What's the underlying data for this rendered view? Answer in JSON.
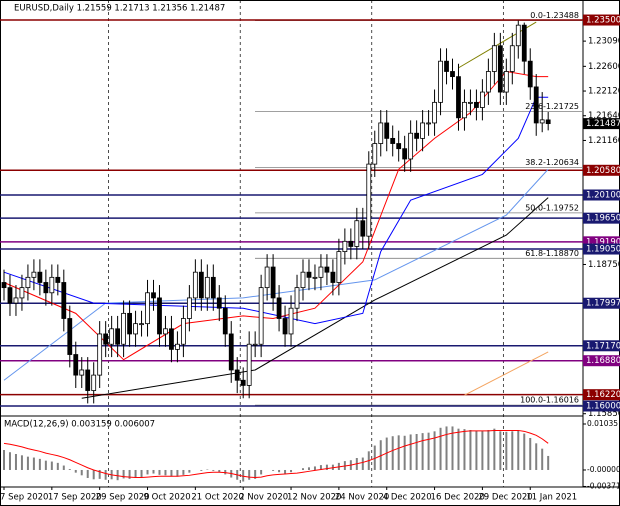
{
  "chart_data": {
    "type": "candlestick",
    "title": "EURUSD,Daily 1.21559 1.21713 1.21356 1.21487",
    "categories": [
      "7 Sep 2020",
      null,
      null,
      null,
      null,
      null,
      null,
      null,
      "17 Sep 2020",
      null,
      null,
      null,
      null,
      null,
      null,
      null,
      "29 Sep 2020",
      null,
      null,
      null,
      null,
      null,
      null,
      null,
      "9 Oct 2020",
      null,
      null,
      null,
      null,
      null,
      null,
      null,
      "21 Oct 2020",
      null,
      null,
      null,
      null,
      null,
      null,
      null,
      "2 Nov 2020",
      null,
      null,
      null,
      null,
      null,
      null,
      null,
      "12 Nov 2020",
      null,
      null,
      null,
      null,
      null,
      null,
      null,
      "24 Nov 2020",
      null,
      null,
      null,
      null,
      null,
      null,
      null,
      "4 Dec 2020",
      null,
      null,
      null,
      null,
      null,
      null,
      null,
      "16 Dec 2020",
      null,
      null,
      null,
      null,
      null,
      null,
      null,
      "29 Dec 2020",
      null,
      null,
      null,
      null,
      null,
      null,
      null,
      "11 Jan 2021",
      null,
      null,
      null
    ],
    "ohlc": [
      [
        1.184,
        1.1865,
        1.1805,
        1.183
      ],
      [
        1.183,
        1.1855,
        1.1775,
        1.18
      ],
      [
        1.18,
        1.1835,
        1.1775,
        1.181
      ],
      [
        1.181,
        1.1855,
        1.1785,
        1.183
      ],
      [
        1.183,
        1.1875,
        1.1805,
        1.185
      ],
      [
        1.185,
        1.1885,
        1.1825,
        1.186
      ],
      [
        1.186,
        1.1885,
        1.1815,
        1.184
      ],
      [
        1.184,
        1.1865,
        1.1795,
        1.182
      ],
      [
        1.182,
        1.1875,
        1.1795,
        1.185
      ],
      [
        1.185,
        1.1875,
        1.1815,
        1.184
      ],
      [
        1.184,
        1.1865,
        1.1745,
        1.177
      ],
      [
        1.177,
        1.1795,
        1.1675,
        1.17
      ],
      [
        1.17,
        1.1725,
        1.1635,
        1.166
      ],
      [
        1.166,
        1.1695,
        1.1635,
        1.167
      ],
      [
        1.167,
        1.1695,
        1.1605,
        1.163
      ],
      [
        1.163,
        1.1685,
        1.1605,
        1.166
      ],
      [
        1.166,
        1.1765,
        1.1635,
        1.174
      ],
      [
        1.174,
        1.1765,
        1.1695,
        1.172
      ],
      [
        1.172,
        1.1775,
        1.1695,
        1.175
      ],
      [
        1.175,
        1.1775,
        1.1695,
        1.172
      ],
      [
        1.172,
        1.1805,
        1.1695,
        1.178
      ],
      [
        1.178,
        1.1805,
        1.1715,
        1.174
      ],
      [
        1.174,
        1.1785,
        1.1715,
        1.176
      ],
      [
        1.176,
        1.1785,
        1.1735,
        1.176
      ],
      [
        1.176,
        1.1845,
        1.1735,
        1.182
      ],
      [
        1.182,
        1.1845,
        1.1785,
        1.181
      ],
      [
        1.181,
        1.1835,
        1.1715,
        1.174
      ],
      [
        1.174,
        1.1775,
        1.1715,
        1.175
      ],
      [
        1.175,
        1.1775,
        1.1685,
        1.171
      ],
      [
        1.171,
        1.1745,
        1.1685,
        1.172
      ],
      [
        1.172,
        1.1795,
        1.1695,
        1.177
      ],
      [
        1.177,
        1.1835,
        1.1745,
        1.181
      ],
      [
        1.181,
        1.1885,
        1.1785,
        1.186
      ],
      [
        1.186,
        1.1885,
        1.1785,
        1.181
      ],
      [
        1.181,
        1.1875,
        1.1785,
        1.185
      ],
      [
        1.185,
        1.1875,
        1.1785,
        1.181
      ],
      [
        1.181,
        1.1835,
        1.1765,
        1.179
      ],
      [
        1.179,
        1.1815,
        1.1715,
        1.174
      ],
      [
        1.174,
        1.1765,
        1.1645,
        1.167
      ],
      [
        1.167,
        1.1695,
        1.1625,
        1.165
      ],
      [
        1.165,
        1.1675,
        1.1615,
        1.164
      ],
      [
        1.164,
        1.1745,
        1.1615,
        1.172
      ],
      [
        1.172,
        1.1745,
        1.1695,
        1.172
      ],
      [
        1.172,
        1.1855,
        1.1695,
        1.183
      ],
      [
        1.183,
        1.1895,
        1.1805,
        1.187
      ],
      [
        1.187,
        1.1895,
        1.1785,
        1.181
      ],
      [
        1.181,
        1.1835,
        1.1745,
        1.177
      ],
      [
        1.177,
        1.1795,
        1.1715,
        1.174
      ],
      [
        1.174,
        1.1815,
        1.1715,
        1.179
      ],
      [
        1.179,
        1.1855,
        1.1765,
        1.183
      ],
      [
        1.183,
        1.1885,
        1.1805,
        1.186
      ],
      [
        1.186,
        1.1885,
        1.1825,
        1.185
      ],
      [
        1.185,
        1.1875,
        1.1825,
        1.185
      ],
      [
        1.185,
        1.1895,
        1.1825,
        1.187
      ],
      [
        1.187,
        1.1895,
        1.1835,
        1.186
      ],
      [
        1.186,
        1.1885,
        1.1815,
        1.184
      ],
      [
        1.184,
        1.1925,
        1.1815,
        1.19
      ],
      [
        1.19,
        1.1945,
        1.1875,
        1.192
      ],
      [
        1.192,
        1.1945,
        1.1885,
        1.191
      ],
      [
        1.191,
        1.1985,
        1.1885,
        1.196
      ],
      [
        1.196,
        1.1985,
        1.1905,
        1.193
      ],
      [
        1.193,
        1.2095,
        1.1905,
        1.207
      ],
      [
        1.207,
        1.2135,
        1.2045,
        1.211
      ],
      [
        1.211,
        1.2175,
        1.2085,
        1.215
      ],
      [
        1.215,
        1.2175,
        1.2095,
        1.212
      ],
      [
        1.212,
        1.2145,
        1.2085,
        1.211
      ],
      [
        1.211,
        1.2135,
        1.2075,
        1.21
      ],
      [
        1.21,
        1.2125,
        1.2055,
        1.208
      ],
      [
        1.208,
        1.2155,
        1.2055,
        1.213
      ],
      [
        1.213,
        1.2155,
        1.2095,
        1.212
      ],
      [
        1.212,
        1.2175,
        1.2095,
        1.215
      ],
      [
        1.215,
        1.2175,
        1.2125,
        1.215
      ],
      [
        1.215,
        1.2215,
        1.2125,
        1.219
      ],
      [
        1.219,
        1.2295,
        1.2165,
        1.227
      ],
      [
        1.227,
        1.2295,
        1.2225,
        1.225
      ],
      [
        1.225,
        1.2275,
        1.2215,
        1.224
      ],
      [
        1.224,
        1.2265,
        1.2135,
        1.216
      ],
      [
        1.216,
        1.2215,
        1.2135,
        1.219
      ],
      [
        1.219,
        1.2215,
        1.2165,
        1.219
      ],
      [
        1.219,
        1.2215,
        1.2155,
        1.218
      ],
      [
        1.218,
        1.2235,
        1.2155,
        1.221
      ],
      [
        1.221,
        1.2275,
        1.2185,
        1.225
      ],
      [
        1.225,
        1.2325,
        1.2225,
        1.23
      ],
      [
        1.23,
        1.2325,
        1.2185,
        1.221
      ],
      [
        1.221,
        1.2275,
        1.2185,
        1.225
      ],
      [
        1.225,
        1.2325,
        1.2225,
        1.23
      ],
      [
        1.23,
        1.2349,
        1.2275,
        1.234
      ],
      [
        1.234,
        1.2345,
        1.2245,
        1.227
      ],
      [
        1.227,
        1.2295,
        1.2195,
        1.222
      ],
      [
        1.222,
        1.2245,
        1.2125,
        1.215
      ],
      [
        1.215,
        1.221,
        1.2132,
        1.2156
      ],
      [
        1.21559,
        1.21713,
        1.21356,
        1.21487
      ]
    ],
    "ylim": [
      1.15825,
      1.23889
    ],
    "yticks": [
      {
        "value": 1.2309,
        "label": "1.23090"
      },
      {
        "value": 1.226,
        "label": "1.22600"
      },
      {
        "value": 1.2212,
        "label": "1.22120"
      },
      {
        "value": 1.2164,
        "label": "1.21640"
      },
      {
        "value": 1.2116,
        "label": "1.21160"
      },
      {
        "value": 1.1875,
        "label": "1.18750"
      },
      {
        "value": 1.1585,
        "label": "1.15850"
      }
    ],
    "levels": [
      {
        "value": 1.235,
        "label": "1.23500",
        "color": "#8b0000"
      },
      {
        "value": 1.2058,
        "label": "1.20580",
        "color": "#8b0000"
      },
      {
        "value": 1.201,
        "label": "1.20100",
        "color": "#191970"
      },
      {
        "value": 1.1965,
        "label": "1.19650",
        "color": "#191970"
      },
      {
        "value": 1.1919,
        "label": "1.19190",
        "color": "#800080"
      },
      {
        "value": 1.1905,
        "label": "1.19050",
        "color": "#191970"
      },
      {
        "value": 1.17997,
        "label": "1.17997",
        "color": "#191970"
      },
      {
        "value": 1.1717,
        "label": "1.17170",
        "color": "#191970"
      },
      {
        "value": 1.1688,
        "label": "1.16880",
        "color": "#800080"
      },
      {
        "value": 1.1622,
        "label": "1.16220",
        "color": "#8b0000"
      },
      {
        "value": 1.16,
        "label": "1.16000",
        "color": "#191970"
      }
    ],
    "fib": [
      {
        "label": "0.0-1.23488",
        "value": 1.23488
      },
      {
        "label": "23.6-1.21725",
        "value": 1.21725
      },
      {
        "label": "38.2-1.20634",
        "value": 1.20634
      },
      {
        "label": "50.0-1.19752",
        "value": 1.19752
      },
      {
        "label": "61.8-1.18870",
        "value": 1.1887
      },
      {
        "label": "100.0-1.16016",
        "value": 1.16016
      }
    ],
    "lines": [
      {
        "color": "#000000",
        "x": [
          13,
          42,
          62,
          84,
          91
        ],
        "values": [
          1.1615,
          1.167,
          1.1806,
          1.1932,
          1.2005
        ]
      },
      {
        "color": "#f4a460",
        "x": [
          77,
          91
        ],
        "values": [
          1.1621,
          1.1705
        ]
      },
      {
        "color": "#6495ed",
        "x": [
          0,
          17,
          40,
          62,
          84,
          91
        ],
        "values": [
          1.165,
          1.18,
          1.181,
          1.1845,
          1.1971,
          1.206
        ]
      },
      {
        "color": "#0000ff",
        "x": [
          0,
          15,
          40,
          52,
          60,
          63,
          68,
          80,
          86,
          89,
          91
        ],
        "values": [
          1.186,
          1.18,
          1.179,
          1.176,
          1.178,
          1.19,
          1.2,
          1.205,
          1.212,
          1.22,
          1.22
        ]
      },
      {
        "color": "#ff0000",
        "x": [
          0,
          12,
          20,
          30,
          40,
          45,
          52,
          60,
          66,
          72,
          78,
          84,
          89,
          91
        ],
        "values": [
          1.184,
          1.178,
          1.169,
          1.176,
          1.1775,
          1.177,
          1.179,
          1.188,
          1.206,
          1.212,
          1.217,
          1.225,
          1.224,
          1.224
        ]
      },
      {
        "color": "#808000",
        "x": [
          76,
          89
        ],
        "values": [
          1.2257,
          1.2346
        ]
      }
    ],
    "macd": {
      "type": "bar",
      "title": "MACD(12,26,9) 0.003159 0.006007",
      "color": "#808080",
      "values": [
        0.0045,
        0.004,
        0.0036,
        0.0033,
        0.003,
        0.0028,
        0.0025,
        0.0021,
        0.0019,
        0.0016,
        0.001,
        0.0002,
        -0.0006,
        -0.0012,
        -0.0018,
        -0.0021,
        -0.002,
        -0.0022,
        -0.0021,
        -0.0023,
        -0.0019,
        -0.002,
        -0.0018,
        -0.0016,
        -0.001,
        -0.0008,
        -0.0011,
        -0.0012,
        -0.0015,
        -0.0015,
        -0.0011,
        -0.0006,
        0,
        -0.0002,
        0.0001,
        -0.0002,
        -0.0005,
        -0.001,
        -0.0017,
        -0.0022,
        -0.0026,
        -0.0022,
        -0.002,
        -0.001,
        0,
        -0.0002,
        -0.0005,
        -0.0008,
        -0.0005,
        0,
        0.0004,
        0.0006,
        0.0008,
        0.0011,
        0.0012,
        0.0012,
        0.0016,
        0.002,
        0.0022,
        0.0027,
        0.0028,
        0.0042,
        0.0055,
        0.0067,
        0.0073,
        0.0076,
        0.0078,
        0.0077,
        0.008,
        0.0081,
        0.0083,
        0.0084,
        0.0087,
        0.0095,
        0.0098,
        0.0098,
        0.0093,
        0.0092,
        0.009,
        0.0088,
        0.0088,
        0.009,
        0.0093,
        0.0087,
        0.0086,
        0.0087,
        0.0089,
        0.0082,
        0.0072,
        0.006,
        0.0048,
        0.003159
      ],
      "signal": {
        "color": "#ff0000",
        "values": [
          0.006,
          0.0058,
          0.0055,
          0.0052,
          0.0048,
          0.0045,
          0.0042,
          0.0038,
          0.0035,
          0.0032,
          0.0028,
          0.0023,
          0.0017,
          0.0011,
          0.0005,
          0,
          -0.0004,
          -0.0008,
          -0.0011,
          -0.0013,
          -0.0015,
          -0.0016,
          -0.0017,
          -0.0017,
          -0.0016,
          -0.0015,
          -0.0014,
          -0.0014,
          -0.0014,
          -0.0014,
          -0.0013,
          -0.0012,
          -0.001,
          -0.0008,
          -0.0006,
          -0.0005,
          -0.0005,
          -0.0006,
          -0.0008,
          -0.0011,
          -0.0014,
          -0.0016,
          -0.0017,
          -0.0016,
          -0.0013,
          -0.0011,
          -0.001,
          -0.0009,
          -0.0008,
          -0.0007,
          -0.0005,
          -0.0003,
          -0.0001,
          0.0001,
          0.0003,
          0.0005,
          0.0007,
          0.0009,
          0.0011,
          0.0014,
          0.0017,
          0.0021,
          0.0026,
          0.0032,
          0.0038,
          0.0044,
          0.0049,
          0.0054,
          0.0058,
          0.0062,
          0.0066,
          0.0069,
          0.0072,
          0.0076,
          0.008,
          0.0083,
          0.0085,
          0.0087,
          0.0088,
          0.0088,
          0.0088,
          0.0088,
          0.0089,
          0.0089,
          0.0089,
          0.0089,
          0.0089,
          0.0087,
          0.0083,
          0.0078,
          0.007,
          0.006007
        ]
      },
      "ylim": [
        -0.00383,
        0.0117
      ],
      "yticks": [
        0.01035,
        {
          "value": 0,
          "label": "-0.00000"
        },
        -0.003711
      ]
    }
  }
}
